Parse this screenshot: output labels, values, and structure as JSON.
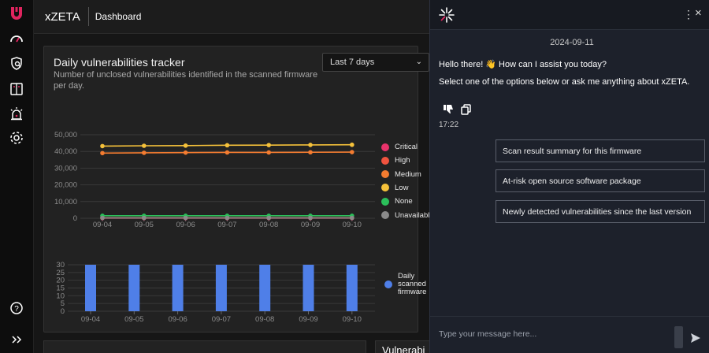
{
  "sidebar": {
    "items": [
      {
        "icon": "logo-icon"
      },
      {
        "icon": "speedometer-icon"
      },
      {
        "icon": "shield-search-icon"
      },
      {
        "icon": "book-icon"
      },
      {
        "icon": "alarm-icon"
      },
      {
        "icon": "gear-icon"
      },
      {
        "icon": "help-icon"
      },
      {
        "icon": "expand-icon"
      }
    ]
  },
  "header": {
    "app_name": "xZETA",
    "breadcrumb": "Dashboard"
  },
  "tracker": {
    "title": "Daily vulnerabilities tracker",
    "subtitle": "Number of unclosed vulnerabilities identified in the scanned firmware per day.",
    "range_selected": "Last 7 days",
    "chevron": "⌄"
  },
  "chart_data": [
    {
      "type": "line",
      "x": [
        "09-04",
        "09-05",
        "09-06",
        "09-07",
        "09-08",
        "09-09",
        "09-10"
      ],
      "yticks": [
        "50,000",
        "40,000",
        "30,000",
        "20,000",
        "10,000",
        "0"
      ],
      "ylim": [
        0,
        50000
      ],
      "series": [
        {
          "name": "Critical",
          "color": "#e8336b",
          "values": [
            100,
            100,
            100,
            100,
            100,
            100,
            100
          ]
        },
        {
          "name": "High",
          "color": "#f0533f",
          "values": [
            300,
            300,
            300,
            300,
            300,
            300,
            300
          ]
        },
        {
          "name": "Medium",
          "color": "#f47c30",
          "values": [
            39000,
            39200,
            39300,
            39400,
            39400,
            39500,
            39600
          ]
        },
        {
          "name": "Low",
          "color": "#f5c13a",
          "values": [
            43200,
            43400,
            43500,
            43700,
            43800,
            43900,
            44000
          ]
        },
        {
          "name": "None",
          "color": "#2bbf5a",
          "values": [
            1500,
            1500,
            1500,
            1500,
            1500,
            1500,
            1500
          ]
        },
        {
          "name": "Unavailable",
          "color": "#8a8a8a",
          "values": [
            200,
            200,
            200,
            200,
            200,
            200,
            200
          ]
        }
      ],
      "legend_position": "right"
    },
    {
      "type": "bar",
      "categories": [
        "09-04",
        "09-05",
        "09-06",
        "09-07",
        "09-08",
        "09-09",
        "09-10"
      ],
      "yticks": [
        "30",
        "25",
        "20",
        "15",
        "10",
        "5",
        "0"
      ],
      "ylim": [
        0,
        30
      ],
      "series": [
        {
          "name": "Daily scanned firmware",
          "color": "#4f7fe8",
          "values": [
            30,
            30,
            30,
            30,
            30,
            30,
            30
          ]
        }
      ],
      "legend_position": "right"
    }
  ],
  "legend_bar_label_lines": [
    "Daily",
    "scanned",
    "firmware"
  ],
  "bottom": {
    "card2_title": "Vulnerabi"
  },
  "chat": {
    "menu_icon": "⋮",
    "close_icon": "×",
    "date": "2024-09-11",
    "greeting": "Hello there! 👋 How can I assist you today?",
    "prompt": "Select one of the options below or ask me anything about xZETA.",
    "time": "17:22",
    "options": [
      "Scan result summary for this firmware",
      "At-risk open source software package",
      "Newly detected vulnerabilities since the last version"
    ],
    "input_placeholder": "Type your message here..."
  }
}
